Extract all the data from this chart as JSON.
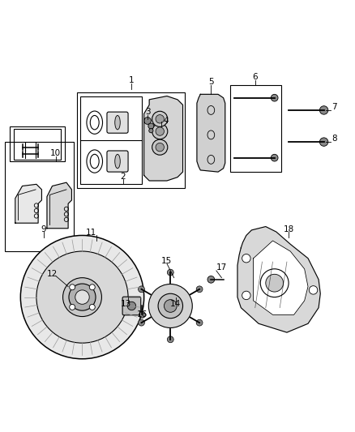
{
  "bg_color": "#ffffff",
  "line_color": "#000000",
  "line_width": 0.8,
  "figsize": [
    4.38,
    5.33
  ],
  "dpi": 100
}
